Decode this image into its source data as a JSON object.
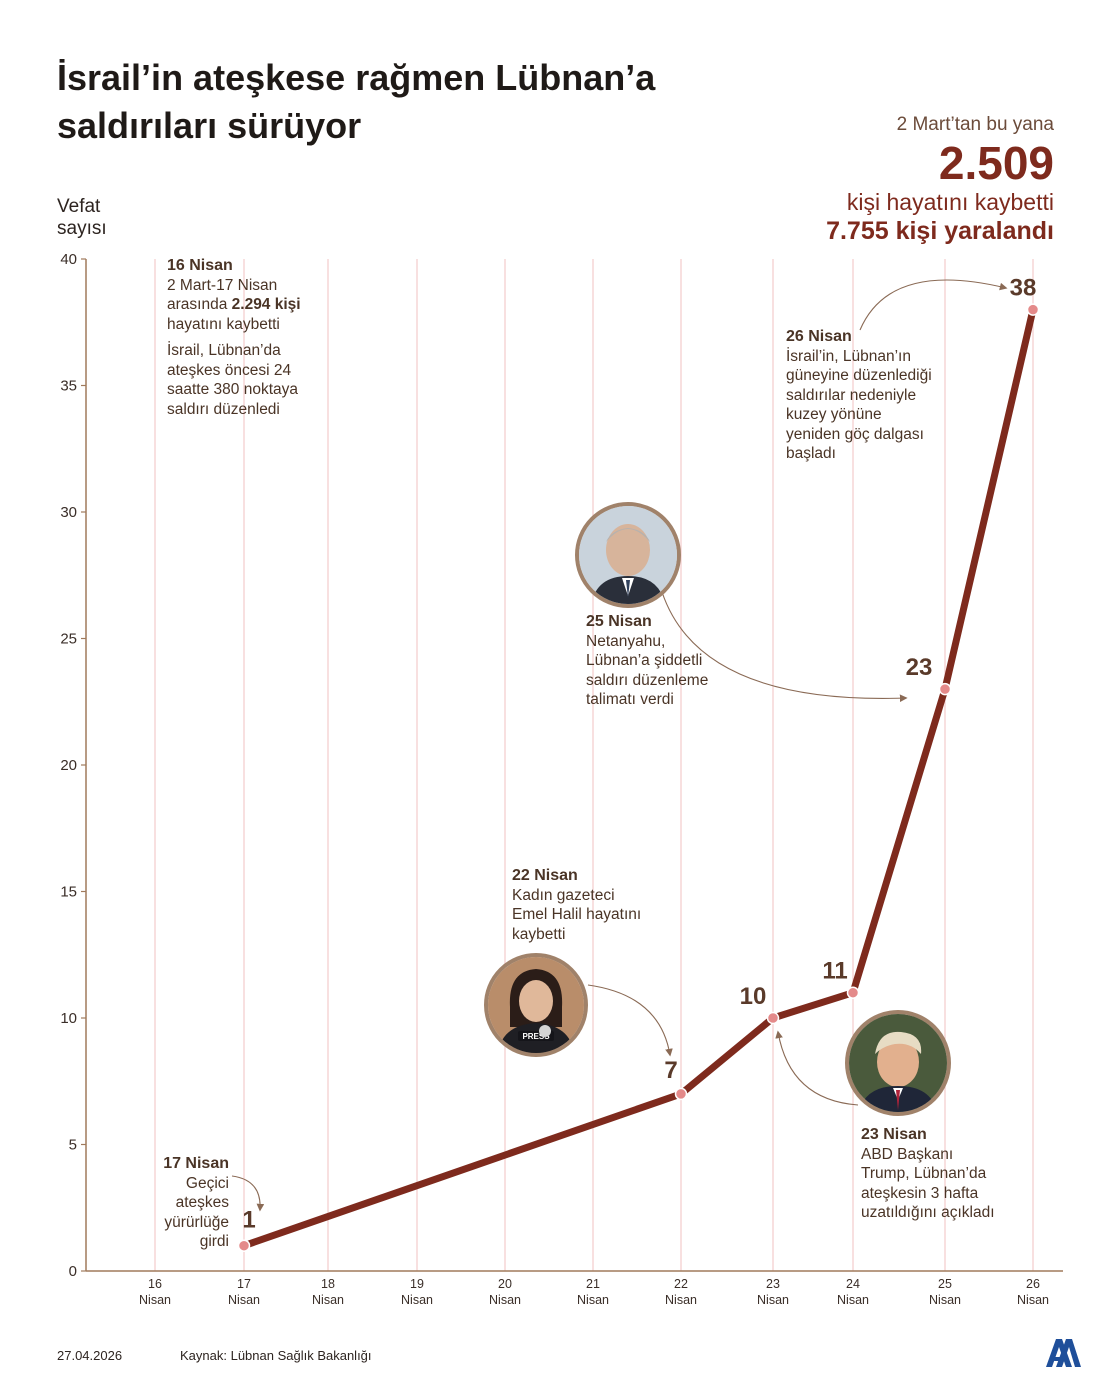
{
  "title": "İsrail’in ateşkese rağmen Lübnan’a saldırıları sürüyor",
  "summary": {
    "since": "2 Mart’tan bu yana",
    "deaths": "2.509",
    "died_label": "kişi hayatını kaybetti",
    "injured": "7.755 kişi yaralandı"
  },
  "y_axis_label": "Vefat sayısı",
  "annotations": {
    "apr16": {
      "date": "16 Nisan",
      "line1_a": "2 Mart-17 Nisan arasında ",
      "line1_b": "2.294 kişi",
      "line1_c": " hayatını kaybetti",
      "line2": "İsrail, Lübnan’da ateşkes öncesi 24 saatte 380 noktaya saldırı düzenledi"
    },
    "apr17": {
      "date": "17 Nisan",
      "text": "Geçici ateşkes yürürlüğe girdi"
    },
    "apr22": {
      "date": "22 Nisan",
      "text": "Kadın gazeteci Emel Halil hayatını kaybetti"
    },
    "apr23": {
      "date": "23 Nisan",
      "text": "ABD Başkanı Trump, Lübnan’da ateşkesin 3 hafta uzatıldığını açıkladı"
    },
    "apr25": {
      "date": "25 Nisan",
      "text": "Netanyahu, Lübnan’a şiddetli saldırı düzenleme talimatı verdi"
    },
    "apr26": {
      "date": "26 Nisan",
      "text": "İsrail’in, Lübnan’ın güneyine düzenlediği saldırılar nedeniyle kuzey yönüne yeniden göç dalgası başladı"
    }
  },
  "footer": {
    "date": "27.04.2026",
    "source": "Kaynak: Lübnan Sağlık Bakanlığı",
    "logo": "AA"
  },
  "colors": {
    "line": "#7e2a1d",
    "point": "#e48a8a",
    "grid": "#f2cccc",
    "text": "#4a3426"
  },
  "chart_data": {
    "type": "line",
    "x": [
      "16 Nisan",
      "17 Nisan",
      "18 Nisan",
      "19 Nisan",
      "20 Nisan",
      "21 Nisan",
      "22 Nisan",
      "23 Nisan",
      "24 Nisan",
      "25 Nisan",
      "26 Nisan"
    ],
    "points": [
      {
        "x": "17 Nisan",
        "y": 1
      },
      {
        "x": "22 Nisan",
        "y": 7
      },
      {
        "x": "23 Nisan",
        "y": 10
      },
      {
        "x": "24 Nisan",
        "y": 11
      },
      {
        "x": "25 Nisan",
        "y": 23
      },
      {
        "x": "26 Nisan",
        "y": 38
      }
    ],
    "ylabel": "Vefat sayısı",
    "xlabel": "",
    "ylim": [
      0,
      40
    ],
    "yticks": [
      0,
      5,
      10,
      15,
      20,
      25,
      30,
      35,
      40
    ],
    "grid": "vertical"
  }
}
